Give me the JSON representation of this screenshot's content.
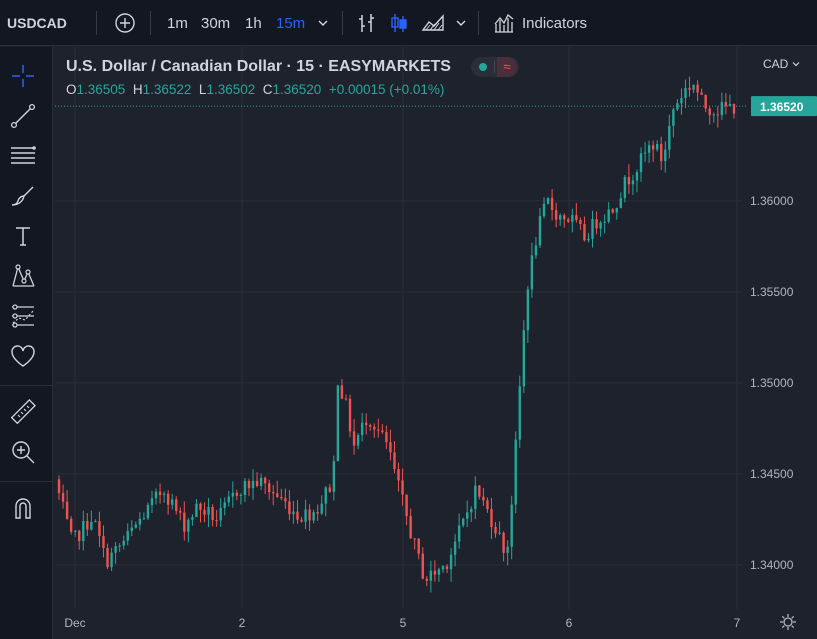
{
  "toolbar": {
    "symbol": "USDCAD",
    "intervals": [
      "1m",
      "30m",
      "1h",
      "15m"
    ],
    "active_interval": "15m",
    "indicators_label": "Indicators",
    "icons": [
      "plus-circle-icon",
      "chevron-down-icon",
      "bar-chart-type-icon",
      "candles-icon",
      "area-chart-icon",
      "chevron-down-icon",
      "indicators-icon"
    ]
  },
  "left_tools": [
    "crosshair-icon",
    "trendline-icon",
    "fib-lines-icon",
    "brush-icon",
    "text-icon",
    "pattern-icon",
    "forecast-icon",
    "heart-icon",
    "ruler-icon",
    "zoom-in-icon",
    "magnet-icon"
  ],
  "legend": {
    "title": "U.S. Dollar / Canadian Dollar · 15 · EASYMARKETS",
    "o_label": "O",
    "o_value": "1.36505",
    "h_label": "H",
    "h_value": "1.36522",
    "l_label": "L",
    "l_value": "1.36502",
    "c_label": "C",
    "c_value": "1.36520",
    "change": "+0.00015 (+0.01%)"
  },
  "currency_label": "CAD",
  "colors": {
    "up": "#26a69a",
    "down": "#ef5350",
    "active": "#2962ff",
    "background": "#1e222d"
  },
  "chart_data": {
    "type": "candlestick",
    "y_ticks": [
      "1.36000",
      "1.35500",
      "1.35000",
      "1.34500",
      "1.34000"
    ],
    "y_tick_values": [
      1.36,
      1.355,
      1.35,
      1.345,
      1.34
    ],
    "x_ticks": [
      "Dec",
      "2",
      "5",
      "6",
      "7"
    ],
    "ylim": [
      1.3378,
      1.3679
    ],
    "last_price": "1.36520",
    "last_price_value": 1.3652,
    "grid": true,
    "path_anchors": [
      [
        0,
        1.3447
      ],
      [
        0.025,
        1.3412
      ],
      [
        0.055,
        1.3427
      ],
      [
        0.075,
        1.3402
      ],
      [
        0.1,
        1.3412
      ],
      [
        0.13,
        1.3427
      ],
      [
        0.16,
        1.3442
      ],
      [
        0.19,
        1.3422
      ],
      [
        0.21,
        1.3432
      ],
      [
        0.24,
        1.3425
      ],
      [
        0.27,
        1.3442
      ],
      [
        0.3,
        1.3446
      ],
      [
        0.33,
        1.3437
      ],
      [
        0.36,
        1.3427
      ],
      [
        0.385,
        1.343
      ],
      [
        0.41,
        1.3447
      ],
      [
        0.415,
        1.3505
      ],
      [
        0.43,
        1.3485
      ],
      [
        0.44,
        1.3465
      ],
      [
        0.46,
        1.3482
      ],
      [
        0.47,
        1.3477
      ],
      [
        0.49,
        1.3465
      ],
      [
        0.51,
        1.3437
      ],
      [
        0.53,
        1.341
      ],
      [
        0.545,
        1.3392
      ],
      [
        0.575,
        1.34
      ],
      [
        0.6,
        1.3422
      ],
      [
        0.62,
        1.3442
      ],
      [
        0.65,
        1.342
      ],
      [
        0.665,
        1.3405
      ],
      [
        0.675,
        1.3445
      ],
      [
        0.685,
        1.35
      ],
      [
        0.695,
        1.3552
      ],
      [
        0.71,
        1.3582
      ],
      [
        0.725,
        1.36
      ],
      [
        0.74,
        1.3592
      ],
      [
        0.76,
        1.359
      ],
      [
        0.78,
        1.358
      ],
      [
        0.8,
        1.359
      ],
      [
        0.82,
        1.3595
      ],
      [
        0.84,
        1.361
      ],
      [
        0.86,
        1.362
      ],
      [
        0.88,
        1.3632
      ],
      [
        0.895,
        1.3622
      ],
      [
        0.91,
        1.365
      ],
      [
        0.925,
        1.366
      ],
      [
        0.94,
        1.3665
      ],
      [
        0.955,
        1.3652
      ],
      [
        0.975,
        1.365
      ],
      [
        1,
        1.3652
      ]
    ]
  }
}
